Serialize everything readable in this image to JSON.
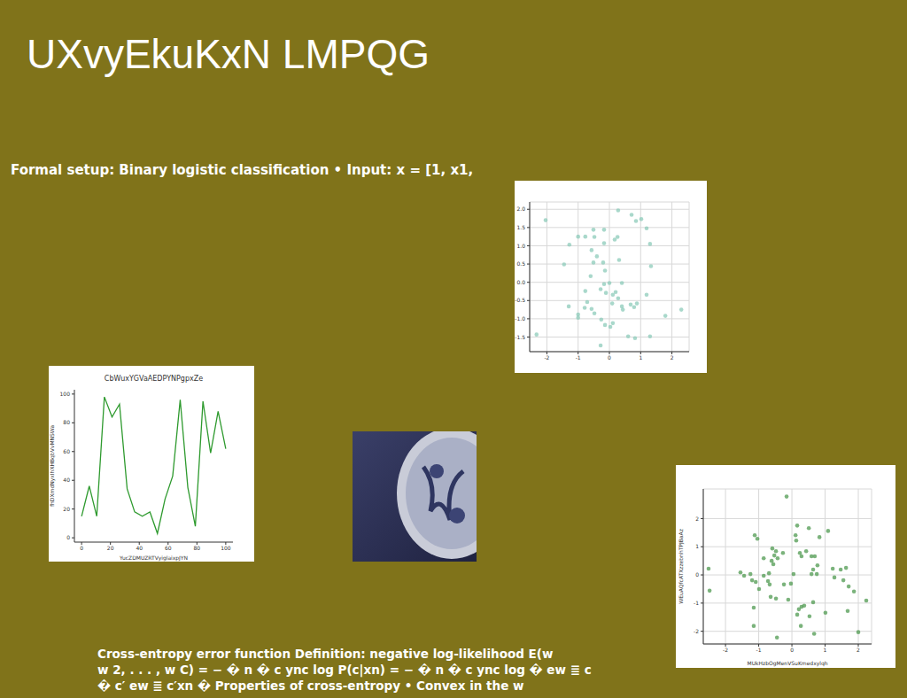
{
  "title": "UXvyEkuKxN LMPQG",
  "texts": [
    {
      "lines": [
        "Formal setup: Binary logistic classification • Input: x = [1, x1,"
      ]
    },
    {
      "lines": [
        "Cross-entropy error function Definition: negative log-likelihood E(w",
        "w 2, . . . , w C) = − � n � c ync log P(c|xn) = − � n � c ync log � ew ≣ c",
        "� c′ ew ≣ c′xn � Properties of cross-entropy • Convex in the w"
      ]
    }
  ],
  "chart_data": [
    {
      "type": "scatter",
      "color": "#8ccbb9",
      "grid": true,
      "xlim": [
        -2.55,
        2.55
      ],
      "ylim": [
        -1.9,
        2.2
      ],
      "xticks": [
        -2,
        -1,
        0,
        1,
        2
      ],
      "yticks": [
        {
          "value": -1.5,
          "label": "-1.5"
        },
        {
          "value": -1,
          "label": "-1.0"
        },
        {
          "value": -0.5,
          "label": "-0.5"
        },
        {
          "value": 0,
          "label": "0.0"
        },
        {
          "value": 0.5,
          "label": "0.5"
        },
        {
          "value": 1,
          "label": "1.0"
        },
        {
          "value": 1.5,
          "label": "1.5"
        },
        {
          "value": 2,
          "label": "2.0"
        }
      ],
      "x": [
        -2.04,
        -1.45,
        -1.28,
        -1.0,
        -0.77,
        0.28,
        0.71,
        0.85,
        1.02,
        1.19,
        1.3,
        1.33,
        1.19,
        1.3,
        1.79,
        2.3,
        0.88,
        0.68,
        0.79,
        0.43,
        0.6,
        0.82,
        -0.28,
        0.03,
        0.11,
        -0.14,
        -0.26,
        -0.48,
        -0.57,
        -0.79,
        -1.0,
        -1.0,
        -1.3,
        -2.33,
        -0.77,
        -0.6,
        -0.51,
        -0.4,
        -0.57,
        -0.48,
        -0.51,
        -0.17,
        -0.17,
        -0.2,
        -0.14,
        -0.17,
        -0.28,
        -0.11,
        0.0,
        0.11,
        0.2,
        0.09,
        0.28,
        0.4,
        0.4,
        0.31,
        0.17,
        0.26,
        -0.71
      ],
      "values": [
        1.7,
        0.49,
        1.03,
        1.25,
        1.25,
        1.97,
        1.85,
        1.68,
        1.73,
        1.48,
        1.05,
        0.44,
        -0.34,
        -1.48,
        -0.92,
        -0.75,
        -0.58,
        -0.61,
        -0.68,
        -0.75,
        -1.48,
        -1.53,
        -1.73,
        -1.22,
        -1.12,
        -1.17,
        -1.02,
        -0.85,
        -0.73,
        -0.7,
        -0.97,
        -0.88,
        -0.66,
        -1.43,
        -0.24,
        0.17,
        0.54,
        0.71,
        0.88,
        1.24,
        1.44,
        1.44,
        1.07,
        0.54,
        0.32,
        -0.05,
        -0.19,
        -0.29,
        -0.02,
        -0.34,
        -0.27,
        -0.58,
        -0.44,
        -0.66,
        -0.02,
        0.61,
        1.17,
        1.24,
        -0.54
      ]
    },
    {
      "type": "line",
      "title": "CbWuxYGVaAEDPYNPgpxZe",
      "x_label": "YucZDMUZRTVyiglaixpJYN",
      "y_label": "fhDXmdNyxIhXHBqbVvMNSWa",
      "color": "#2e9a2e",
      "grid": false,
      "xlim": [
        -5,
        105
      ],
      "ylim": [
        -3,
        103
      ],
      "xticks": [
        0,
        20,
        40,
        60,
        80,
        100
      ],
      "yticks": [
        0,
        20,
        40,
        60,
        80,
        100
      ],
      "x": [
        0,
        5.3,
        10.5,
        15.8,
        21.1,
        26.3,
        31.6,
        36.8,
        42.1,
        47.4,
        52.6,
        57.9,
        63.2,
        68.4,
        73.7,
        78.9,
        84.2,
        89.5,
        94.7,
        100
      ],
      "values": [
        15,
        36,
        15,
        98,
        84,
        93,
        34,
        18,
        15,
        18,
        3,
        27,
        43,
        96,
        35,
        8,
        95,
        59,
        88,
        62
      ]
    },
    {
      "type": "scatter",
      "x_label": "MUkHzbOgMenVSuKmedxylqh",
      "y_label": "WEuAQfcATXzzebnhTPJBaAz",
      "color": "#4f9a50",
      "grid": true,
      "xlim": [
        -2.67,
        2.4
      ],
      "ylim": [
        -2.45,
        3.05
      ],
      "xticks": [
        -2,
        -1,
        0,
        1,
        2
      ],
      "yticks": [
        -2,
        -1,
        0,
        1,
        2
      ],
      "x": [
        -0.16,
        -2.51,
        -2.48,
        -1.55,
        -1.44,
        -1.25,
        -1.2,
        -1.09,
        -1.12,
        -1.04,
        -0.85,
        -0.99,
        -1.15,
        -1.15,
        -0.85,
        -0.69,
        -0.72,
        -0.67,
        -0.64,
        -0.61,
        -0.59,
        -0.53,
        -0.56,
        -0.48,
        -0.48,
        -0.45,
        -0.24,
        -0.27,
        -0.43,
        -0.03,
        -0.11,
        0.05,
        0.11,
        0.16,
        0.13,
        0.24,
        0.29,
        0.43,
        0.59,
        0.64,
        0.59,
        0.29,
        0.37,
        0.21,
        0.16,
        0.27,
        0.67,
        0.53,
        0.64,
        0.51,
        0.69,
        0.77,
        0.75,
        0.83,
        1.09,
        1.01,
        1.23,
        1.28,
        1.47,
        1.55,
        1.63,
        1.68,
        1.71,
        1.87,
        2.0,
        2.24
      ],
      "values": [
        2.78,
        0.22,
        -0.56,
        0.09,
        -0.03,
        0.03,
        -0.19,
        -0.25,
        1.41,
        1.28,
        0.59,
        -0.5,
        -1.16,
        -1.81,
        -0.03,
        0.06,
        -0.22,
        -0.34,
        -0.78,
        0.5,
        0.94,
        0.69,
        0.38,
        0.84,
        -0.84,
        -2.22,
        -0.34,
        0.78,
        0.59,
        -0.31,
        -0.88,
        0.03,
        1.41,
        1.75,
        1.22,
        0.78,
        0.66,
        0.84,
        0.66,
        0.19,
        0.03,
        -1.13,
        -1.09,
        -1.22,
        -1.41,
        -1.81,
        -2.09,
        -1.47,
        -0.97,
        1.66,
        0.66,
        0.34,
        0.03,
        1.34,
        1.56,
        -1.34,
        0.22,
        -0.09,
        0.19,
        -0.19,
        0.25,
        -1.28,
        -0.41,
        -0.59,
        -2.03,
        -0.91
      ]
    }
  ]
}
